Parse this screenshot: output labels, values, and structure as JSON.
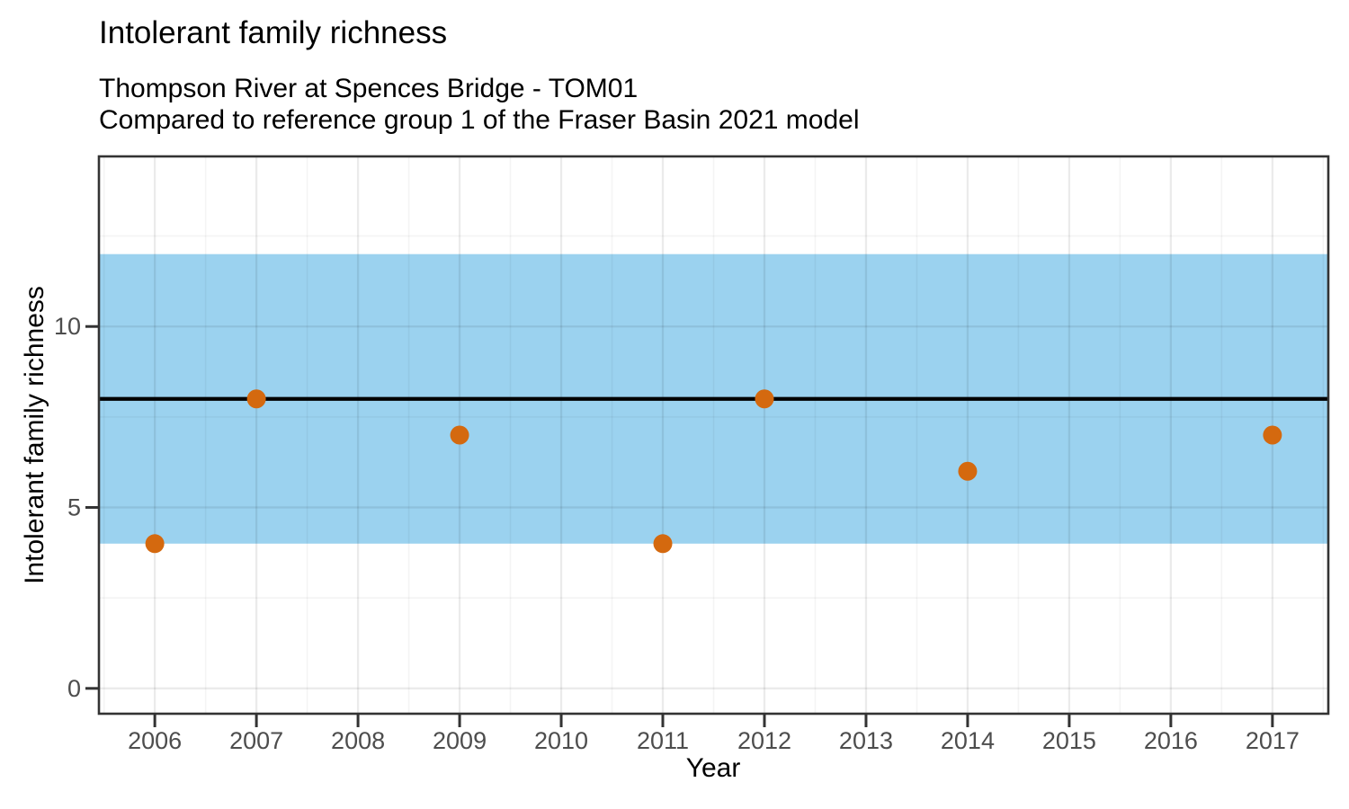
{
  "header": {
    "title": "Intolerant family richness",
    "subtitle_line1": "Thompson River at Spences Bridge - TOM01",
    "subtitle_line2": "Compared to reference group 1 of the Fraser Basin 2021 model"
  },
  "chart_data": {
    "type": "scatter",
    "title": "Intolerant family richness",
    "subtitle": [
      "Thompson River at Spences Bridge - TOM01",
      "Compared to reference group 1 of the Fraser Basin 2021 model"
    ],
    "xlabel": "Year",
    "ylabel": "Intolerant family richness",
    "xlim": [
      2005.45,
      2017.55
    ],
    "ylim": [
      -0.7,
      14.7
    ],
    "x_major_ticks": [
      2006,
      2007,
      2008,
      2009,
      2010,
      2011,
      2012,
      2013,
      2014,
      2015,
      2016,
      2017
    ],
    "x_minor_gridlines": [
      2005.5,
      2006.5,
      2007.5,
      2008.5,
      2009.5,
      2010.5,
      2011.5,
      2012.5,
      2013.5,
      2014.5,
      2015.5,
      2016.5,
      2017.5
    ],
    "y_major_ticks": [
      0,
      5,
      10
    ],
    "y_minor_gridlines": [
      2.5,
      7.5,
      12.5
    ],
    "grid": true,
    "legend": "none",
    "series": [
      {
        "name": "observed-values",
        "type": "point",
        "color": "#D4690F",
        "points": [
          [
            2006,
            4
          ],
          [
            2007,
            8
          ],
          [
            2009,
            7
          ],
          [
            2011,
            4
          ],
          [
            2012,
            8
          ],
          [
            2014,
            6
          ],
          [
            2017,
            7
          ]
        ]
      }
    ],
    "reference_band": {
      "ymin": 4,
      "ymax": 12,
      "fill": "#9BD2EF"
    },
    "reference_line": {
      "y": 8,
      "color": "#000000"
    },
    "colors": {
      "panel_background": "#FFFFFF",
      "panel_border": "#333333",
      "tick_mark": "#333333",
      "tick_text": "#4D4D4D",
      "point": "#D4690F",
      "band": "#9BD2EF",
      "median_line": "#000000"
    }
  }
}
